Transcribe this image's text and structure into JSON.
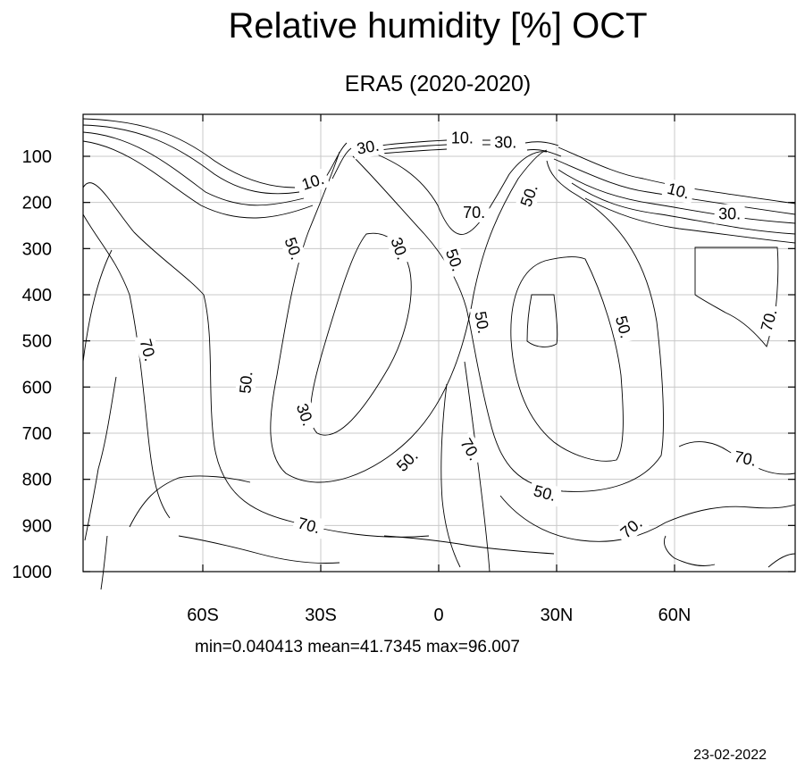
{
  "chart_data": {
    "type": "contour",
    "title": "Relative humidity [%] OCT",
    "subtitle": "ERA5 (2020-2020)",
    "xlabel": "",
    "ylabel": "",
    "xlim": [
      -90,
      90
    ],
    "ylim": [
      1000,
      10
    ],
    "x_ticks": [
      {
        "value": -60,
        "label": "60S"
      },
      {
        "value": -30,
        "label": "30S"
      },
      {
        "value": 0,
        "label": "0"
      },
      {
        "value": 30,
        "label": "30N"
      },
      {
        "value": 60,
        "label": "60N"
      }
    ],
    "y_ticks": [
      {
        "value": 100,
        "label": "100"
      },
      {
        "value": 200,
        "label": "200"
      },
      {
        "value": 300,
        "label": "300"
      },
      {
        "value": 400,
        "label": "400"
      },
      {
        "value": 500,
        "label": "500"
      },
      {
        "value": 600,
        "label": "600"
      },
      {
        "value": 700,
        "label": "700"
      },
      {
        "value": 800,
        "label": "800"
      },
      {
        "value": 900,
        "label": "900"
      },
      {
        "value": 1000,
        "label": "1000"
      }
    ],
    "grid": true,
    "contour_levels": [
      10,
      30,
      50,
      70
    ],
    "contour_labels": [
      {
        "text": "10.",
        "lat": -32,
        "p": 155,
        "angle": -18
      },
      {
        "text": "30.",
        "lat": -18,
        "p": 80,
        "angle": -10
      },
      {
        "text": "10.",
        "lat": 6,
        "p": 60,
        "angle": 0
      },
      {
        "text": "30.",
        "lat": 17,
        "p": 70,
        "angle": 0
      },
      {
        "text": "70.",
        "lat": 9,
        "p": 222,
        "angle": 0
      },
      {
        "text": "50.",
        "lat": 23,
        "p": 185,
        "angle": -70
      },
      {
        "text": "10.",
        "lat": 61,
        "p": 175,
        "angle": 15
      },
      {
        "text": "30.",
        "lat": 74,
        "p": 225,
        "angle": 0
      },
      {
        "text": "50.",
        "lat": -37,
        "p": 300,
        "angle": 70
      },
      {
        "text": "30.",
        "lat": -10,
        "p": 300,
        "angle": 70
      },
      {
        "text": "50.",
        "lat": 4,
        "p": 325,
        "angle": 70
      },
      {
        "text": "50.",
        "lat": 11,
        "p": 460,
        "angle": 80
      },
      {
        "text": "50.",
        "lat": 47,
        "p": 470,
        "angle": 75
      },
      {
        "text": "70.",
        "lat": 84,
        "p": 455,
        "angle": -75
      },
      {
        "text": "70.",
        "lat": -74,
        "p": 520,
        "angle": 75
      },
      {
        "text": "50.",
        "lat": -49,
        "p": 590,
        "angle": -85
      },
      {
        "text": "30.",
        "lat": -34,
        "p": 660,
        "angle": 70
      },
      {
        "text": "50.",
        "lat": -8,
        "p": 760,
        "angle": -45
      },
      {
        "text": "70.",
        "lat": 8,
        "p": 735,
        "angle": 60
      },
      {
        "text": "70.",
        "lat": 78,
        "p": 755,
        "angle": 12
      },
      {
        "text": "50.",
        "lat": 27,
        "p": 830,
        "angle": 15
      },
      {
        "text": "70.",
        "lat": -33,
        "p": 900,
        "angle": 15
      },
      {
        "text": "70.",
        "lat": 49,
        "p": 905,
        "angle": -40
      }
    ],
    "stats": "min=0.040413   mean=41.7345   max=96.007",
    "date": "23-02-2022"
  }
}
